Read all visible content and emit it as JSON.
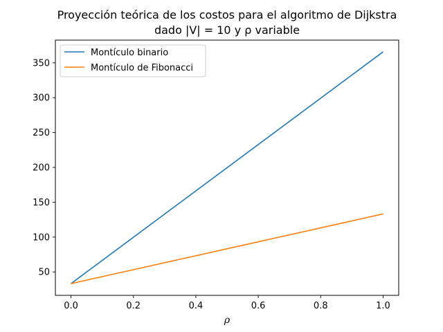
{
  "chart_data": {
    "type": "line",
    "title_line1": "Proyección teórica de los costos para el algoritmo de Dijkstra",
    "title_line2": "dado |V| = 10 y ρ variable",
    "xlabel": "ρ",
    "ylabel": "",
    "xlim": [
      -0.05,
      1.05
    ],
    "ylim": [
      16.4,
      382.6
    ],
    "xticks": [
      0.0,
      0.2,
      0.4,
      0.6,
      0.8,
      1.0
    ],
    "xtick_labels": [
      "0.0",
      "0.2",
      "0.4",
      "0.6",
      "0.8",
      "1.0"
    ],
    "yticks": [
      50,
      100,
      150,
      200,
      250,
      300,
      350
    ],
    "ytick_labels": [
      "50",
      "100",
      "150",
      "200",
      "250",
      "300",
      "350"
    ],
    "grid": false,
    "legend_position": "top-left",
    "series": [
      {
        "name": "Montículo binario",
        "color": "#1f77b4",
        "x": [
          0.0,
          1.0
        ],
        "y": [
          33.2,
          365.8
        ]
      },
      {
        "name": "Montículo de Fibonacci",
        "color": "#ff7f0e",
        "x": [
          0.0,
          1.0
        ],
        "y": [
          33.2,
          133.2
        ]
      }
    ]
  }
}
